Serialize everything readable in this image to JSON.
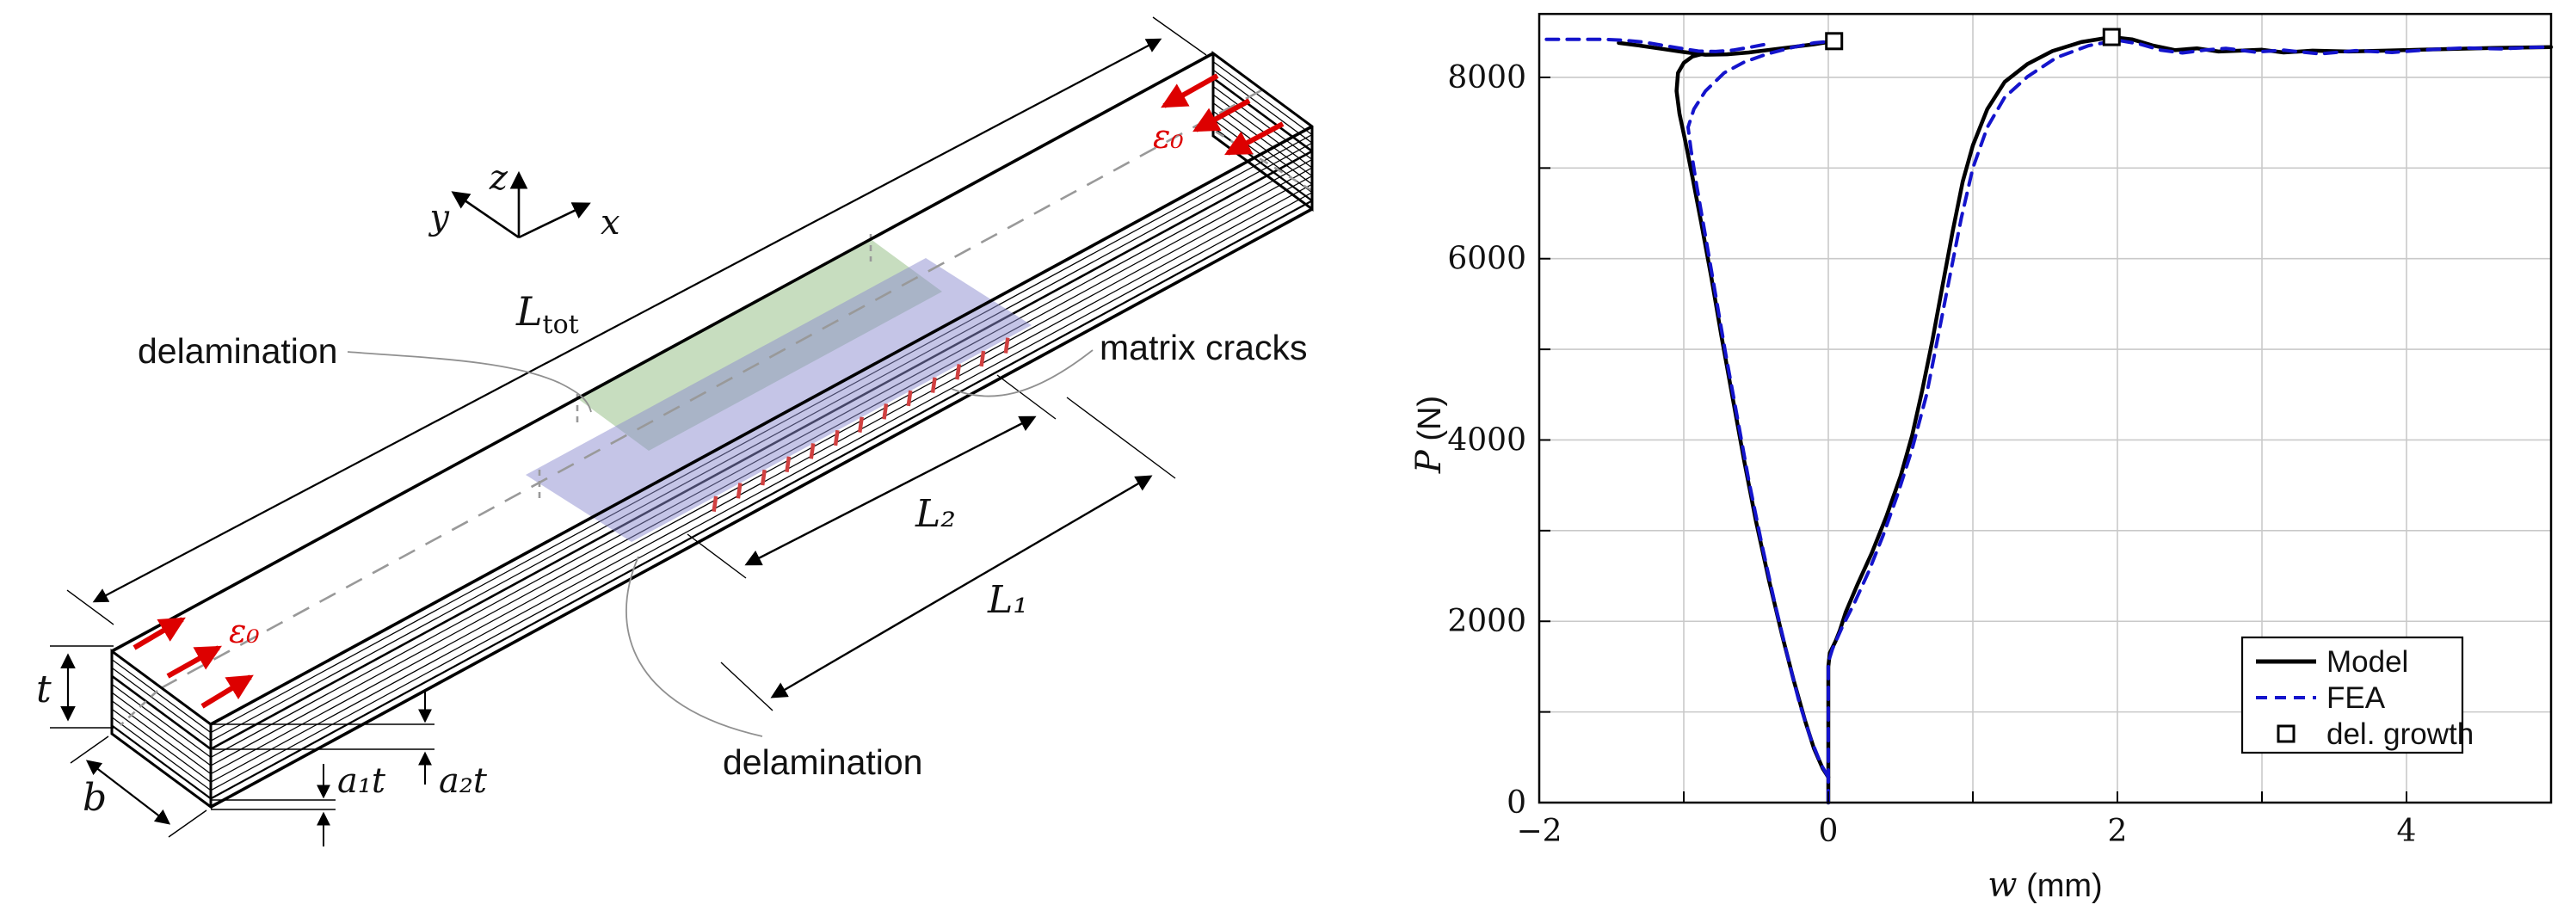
{
  "figure": {
    "background": "#ffffff"
  },
  "diagram": {
    "labels": {
      "delamination_top": "delamination",
      "delamination_bottom": "delamination",
      "matrix_cracks": "matrix cracks",
      "axis_x": "x",
      "axis_y": "y",
      "axis_z": "z",
      "L_tot_main": "L",
      "L_tot_sub": "tot",
      "L1": "L₁",
      "L2": "L₂",
      "t": "t",
      "b": "b",
      "a1t": "a₁t",
      "a2t": "a₂t",
      "epsilon0_left": "ε₀",
      "epsilon0_right": "ε₀"
    },
    "colors": {
      "delamination_green": "#8fbc7f",
      "delamination_blue": "#8c8cd0",
      "strain_arrow_red": "#dd0000",
      "matrix_crack_red": "#d04040",
      "leader_gray": "#909090",
      "centerline_gray": "#999999"
    },
    "ply_line_count": 9,
    "matrix_crack_tick_count": 13
  },
  "chart_data": {
    "type": "line",
    "title": "",
    "xlabel_var": "w",
    "xlabel_unit": " (mm)",
    "ylabel_var": "P",
    "ylabel_unit": " (N)",
    "xlim": [
      -2,
      5
    ],
    "ylim": [
      0,
      8700
    ],
    "x_ticks": [
      -2,
      0,
      2,
      4
    ],
    "y_ticks": [
      0,
      2000,
      4000,
      6000,
      8000
    ],
    "x_grid_step": 1,
    "y_grid_step": 1000,
    "grid": true,
    "legend_position": "lower right",
    "legend": [
      {
        "label": "Model",
        "style": "solid",
        "color": "#000000"
      },
      {
        "label": "FEA",
        "style": "dashed",
        "color": "#1414cc"
      },
      {
        "label": "del. growth",
        "style": "open-square",
        "color": "#000000"
      }
    ],
    "series": [
      {
        "name": "Model",
        "style": "solid",
        "color": "#000000",
        "width": 4.5,
        "branches": [
          [
            [
              0,
              0
            ],
            [
              0,
              1500
            ],
            [
              0.01,
              1650
            ],
            [
              0.05,
              1780
            ],
            [
              0.08,
              1900
            ],
            [
              0.12,
              2100
            ],
            [
              0.2,
              2400
            ],
            [
              0.3,
              2750
            ],
            [
              0.4,
              3150
            ],
            [
              0.5,
              3600
            ],
            [
              0.58,
              4050
            ],
            [
              0.65,
              4550
            ],
            [
              0.72,
              5100
            ],
            [
              0.79,
              5700
            ],
            [
              0.86,
              6300
            ],
            [
              0.93,
              6850
            ],
            [
              1,
              7250
            ],
            [
              1.1,
              7650
            ],
            [
              1.22,
              7950
            ],
            [
              1.38,
              8150
            ],
            [
              1.55,
              8290
            ],
            [
              1.75,
              8390
            ],
            [
              1.96,
              8445
            ],
            [
              2.1,
              8420
            ],
            [
              2.25,
              8350
            ],
            [
              2.4,
              8300
            ],
            [
              2.55,
              8320
            ],
            [
              2.7,
              8285
            ],
            [
              2.85,
              8295
            ],
            [
              3,
              8305
            ],
            [
              3.15,
              8275
            ],
            [
              3.35,
              8295
            ],
            [
              3.6,
              8285
            ],
            [
              3.85,
              8295
            ],
            [
              4.1,
              8305
            ],
            [
              4.35,
              8315
            ],
            [
              4.6,
              8325
            ],
            [
              4.8,
              8330
            ],
            [
              5,
              8335
            ]
          ],
          [
            [
              0,
              280
            ],
            [
              -0.04,
              380
            ],
            [
              -0.1,
              600
            ],
            [
              -0.16,
              900
            ],
            [
              -0.24,
              1350
            ],
            [
              -0.32,
              1850
            ],
            [
              -0.41,
              2450
            ],
            [
              -0.5,
              3100
            ],
            [
              -0.58,
              3750
            ],
            [
              -0.66,
              4450
            ],
            [
              -0.74,
              5150
            ],
            [
              -0.81,
              5800
            ],
            [
              -0.88,
              6400
            ],
            [
              -0.94,
              6900
            ],
            [
              -0.99,
              7300
            ],
            [
              -1.03,
              7600
            ],
            [
              -1.05,
              7850
            ],
            [
              -1.04,
              8050
            ],
            [
              -1,
              8160
            ],
            [
              -0.94,
              8230
            ],
            [
              -0.88,
              8255
            ]
          ],
          [
            [
              -1.45,
              8380
            ],
            [
              -1.3,
              8350
            ],
            [
              -1.15,
              8315
            ],
            [
              -1,
              8280
            ],
            [
              -0.85,
              8250
            ],
            [
              -0.7,
              8255
            ],
            [
              -0.55,
              8275
            ],
            [
              -0.4,
              8305
            ],
            [
              -0.25,
              8335
            ],
            [
              -0.1,
              8365
            ],
            [
              0.04,
              8400
            ]
          ]
        ]
      },
      {
        "name": "FEA",
        "style": "dashed",
        "color": "#1414cc",
        "width": 4,
        "branches": [
          [
            [
              0,
              0
            ],
            [
              0,
              1550
            ],
            [
              0.03,
              1700
            ],
            [
              0.1,
              1950
            ],
            [
              0.18,
              2200
            ],
            [
              0.28,
              2550
            ],
            [
              0.38,
              2950
            ],
            [
              0.48,
              3400
            ],
            [
              0.58,
              3900
            ],
            [
              0.68,
              4500
            ],
            [
              0.76,
              5150
            ],
            [
              0.84,
              5800
            ],
            [
              0.92,
              6450
            ],
            [
              1,
              7000
            ],
            [
              1.1,
              7450
            ],
            [
              1.22,
              7780
            ],
            [
              1.38,
              8010
            ],
            [
              1.58,
              8220
            ],
            [
              1.8,
              8350
            ],
            [
              2,
              8410
            ],
            [
              2.15,
              8370
            ],
            [
              2.3,
              8300
            ],
            [
              2.45,
              8270
            ],
            [
              2.6,
              8300
            ],
            [
              2.75,
              8320
            ],
            [
              2.95,
              8280
            ],
            [
              3.15,
              8300
            ],
            [
              3.4,
              8260
            ],
            [
              3.65,
              8295
            ],
            [
              3.9,
              8275
            ],
            [
              4.15,
              8305
            ],
            [
              4.4,
              8325
            ],
            [
              4.65,
              8315
            ],
            [
              4.85,
              8330
            ],
            [
              5,
              8335
            ]
          ],
          [
            [
              0,
              280
            ],
            [
              -0.05,
              420
            ],
            [
              -0.12,
              700
            ],
            [
              -0.2,
              1100
            ],
            [
              -0.28,
              1600
            ],
            [
              -0.37,
              2200
            ],
            [
              -0.46,
              2850
            ],
            [
              -0.55,
              3550
            ],
            [
              -0.63,
              4250
            ],
            [
              -0.71,
              4950
            ],
            [
              -0.78,
              5600
            ],
            [
              -0.85,
              6250
            ],
            [
              -0.91,
              6800
            ],
            [
              -0.95,
              7200
            ],
            [
              -0.97,
              7450
            ],
            [
              -0.93,
              7650
            ],
            [
              -0.85,
              7850
            ],
            [
              -0.72,
              8050
            ],
            [
              -0.58,
              8170
            ],
            [
              -0.42,
              8260
            ],
            [
              -0.25,
              8330
            ],
            [
              -0.1,
              8380
            ],
            [
              0.04,
              8400
            ]
          ],
          [
            [
              -1.95,
              8420
            ],
            [
              -1.75,
              8420
            ],
            [
              -1.55,
              8420
            ],
            [
              -1.42,
              8410
            ],
            [
              -1.28,
              8390
            ],
            [
              -1.15,
              8355
            ],
            [
              -1.02,
              8320
            ],
            [
              -0.9,
              8290
            ],
            [
              -0.78,
              8285
            ],
            [
              -0.66,
              8300
            ],
            [
              -0.55,
              8330
            ],
            [
              -0.45,
              8360
            ],
            [
              -0.4,
              8380
            ]
          ]
        ]
      },
      {
        "name": "del. growth",
        "style": "open-square",
        "color": "#000000",
        "points": [
          [
            0.04,
            8400
          ],
          [
            1.96,
            8445
          ]
        ]
      }
    ]
  }
}
